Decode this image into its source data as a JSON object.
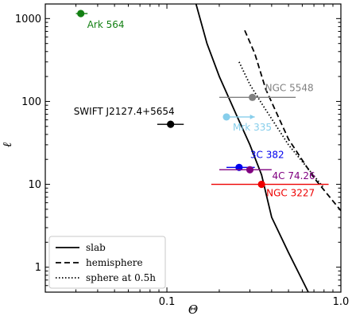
{
  "chart_data": {
    "type": "scatter",
    "xlabel": "Θ",
    "ylabel": "ℓ",
    "x_scale": "log",
    "y_scale": "log",
    "xlim": [
      0.02,
      1.0
    ],
    "ylim": [
      0.5,
      1500
    ],
    "x_ticks": [
      {
        "value": 0.1,
        "label": "0.1"
      },
      {
        "value": 1.0,
        "label": "1.0"
      }
    ],
    "y_ticks": [
      {
        "value": 1,
        "label": "1"
      },
      {
        "value": 10,
        "label": "10"
      },
      {
        "value": 100,
        "label": "100"
      },
      {
        "value": 1000,
        "label": "1000"
      }
    ],
    "legend": {
      "position": "bottom-left",
      "entries": [
        {
          "label": "slab",
          "style": "solid"
        },
        {
          "label": "hemisphere",
          "style": "dashed"
        },
        {
          "label": "sphere at 0.5h",
          "style": "dotted"
        }
      ]
    },
    "curves": [
      {
        "name": "slab",
        "style": "solid",
        "color": "#000000",
        "points": [
          [
            0.147,
            1500
          ],
          [
            0.17,
            500
          ],
          [
            0.2,
            200
          ],
          [
            0.25,
            70
          ],
          [
            0.3,
            30
          ],
          [
            0.35,
            13
          ],
          [
            0.4,
            4
          ],
          [
            0.5,
            1.5
          ],
          [
            0.65,
            0.5
          ]
        ]
      },
      {
        "name": "hemisphere",
        "style": "dashed",
        "color": "#000000",
        "points": [
          [
            0.28,
            720
          ],
          [
            0.32,
            380
          ],
          [
            0.37,
            140
          ],
          [
            0.5,
            35
          ],
          [
            0.7,
            12
          ],
          [
            1.0,
            4.8
          ]
        ]
      },
      {
        "name": "sphere at 0.5h",
        "style": "dotted",
        "color": "#000000",
        "points": [
          [
            0.26,
            300
          ],
          [
            0.3,
            160
          ],
          [
            0.35,
            95
          ],
          [
            0.5,
            30
          ],
          [
            0.8,
            9
          ]
        ]
      }
    ],
    "sources": [
      {
        "name": "Ark 564",
        "theta": 0.032,
        "theta_lo": 0.03,
        "theta_hi": 0.035,
        "ell": 1150,
        "color": "#138013"
      },
      {
        "name": "SWIFT J2127.4+5654",
        "theta": 0.105,
        "theta_lo": 0.088,
        "theta_hi": 0.125,
        "ell": 53,
        "color": "#000000"
      },
      {
        "name": "NGC 5548",
        "theta": 0.31,
        "theta_lo": 0.2,
        "theta_hi": 0.55,
        "ell": 112,
        "color": "#808080"
      },
      {
        "name": "Mrk 335",
        "theta": 0.22,
        "theta_lo": 0.22,
        "theta_hi": 0.32,
        "ell": 65,
        "color": "#87ceeb"
      },
      {
        "name": "3C 382",
        "theta": 0.26,
        "theta_lo": 0.22,
        "theta_hi": 0.32,
        "ell": 16,
        "color": "#0000ee"
      },
      {
        "name": "4C 74.26",
        "theta": 0.3,
        "theta_lo": 0.2,
        "theta_hi": 0.4,
        "ell": 15,
        "color": "#800080"
      },
      {
        "name": "NGC 3227",
        "theta": 0.35,
        "theta_lo": 0.18,
        "theta_hi": 0.85,
        "ell": 10,
        "color": "#ee0000"
      }
    ]
  }
}
